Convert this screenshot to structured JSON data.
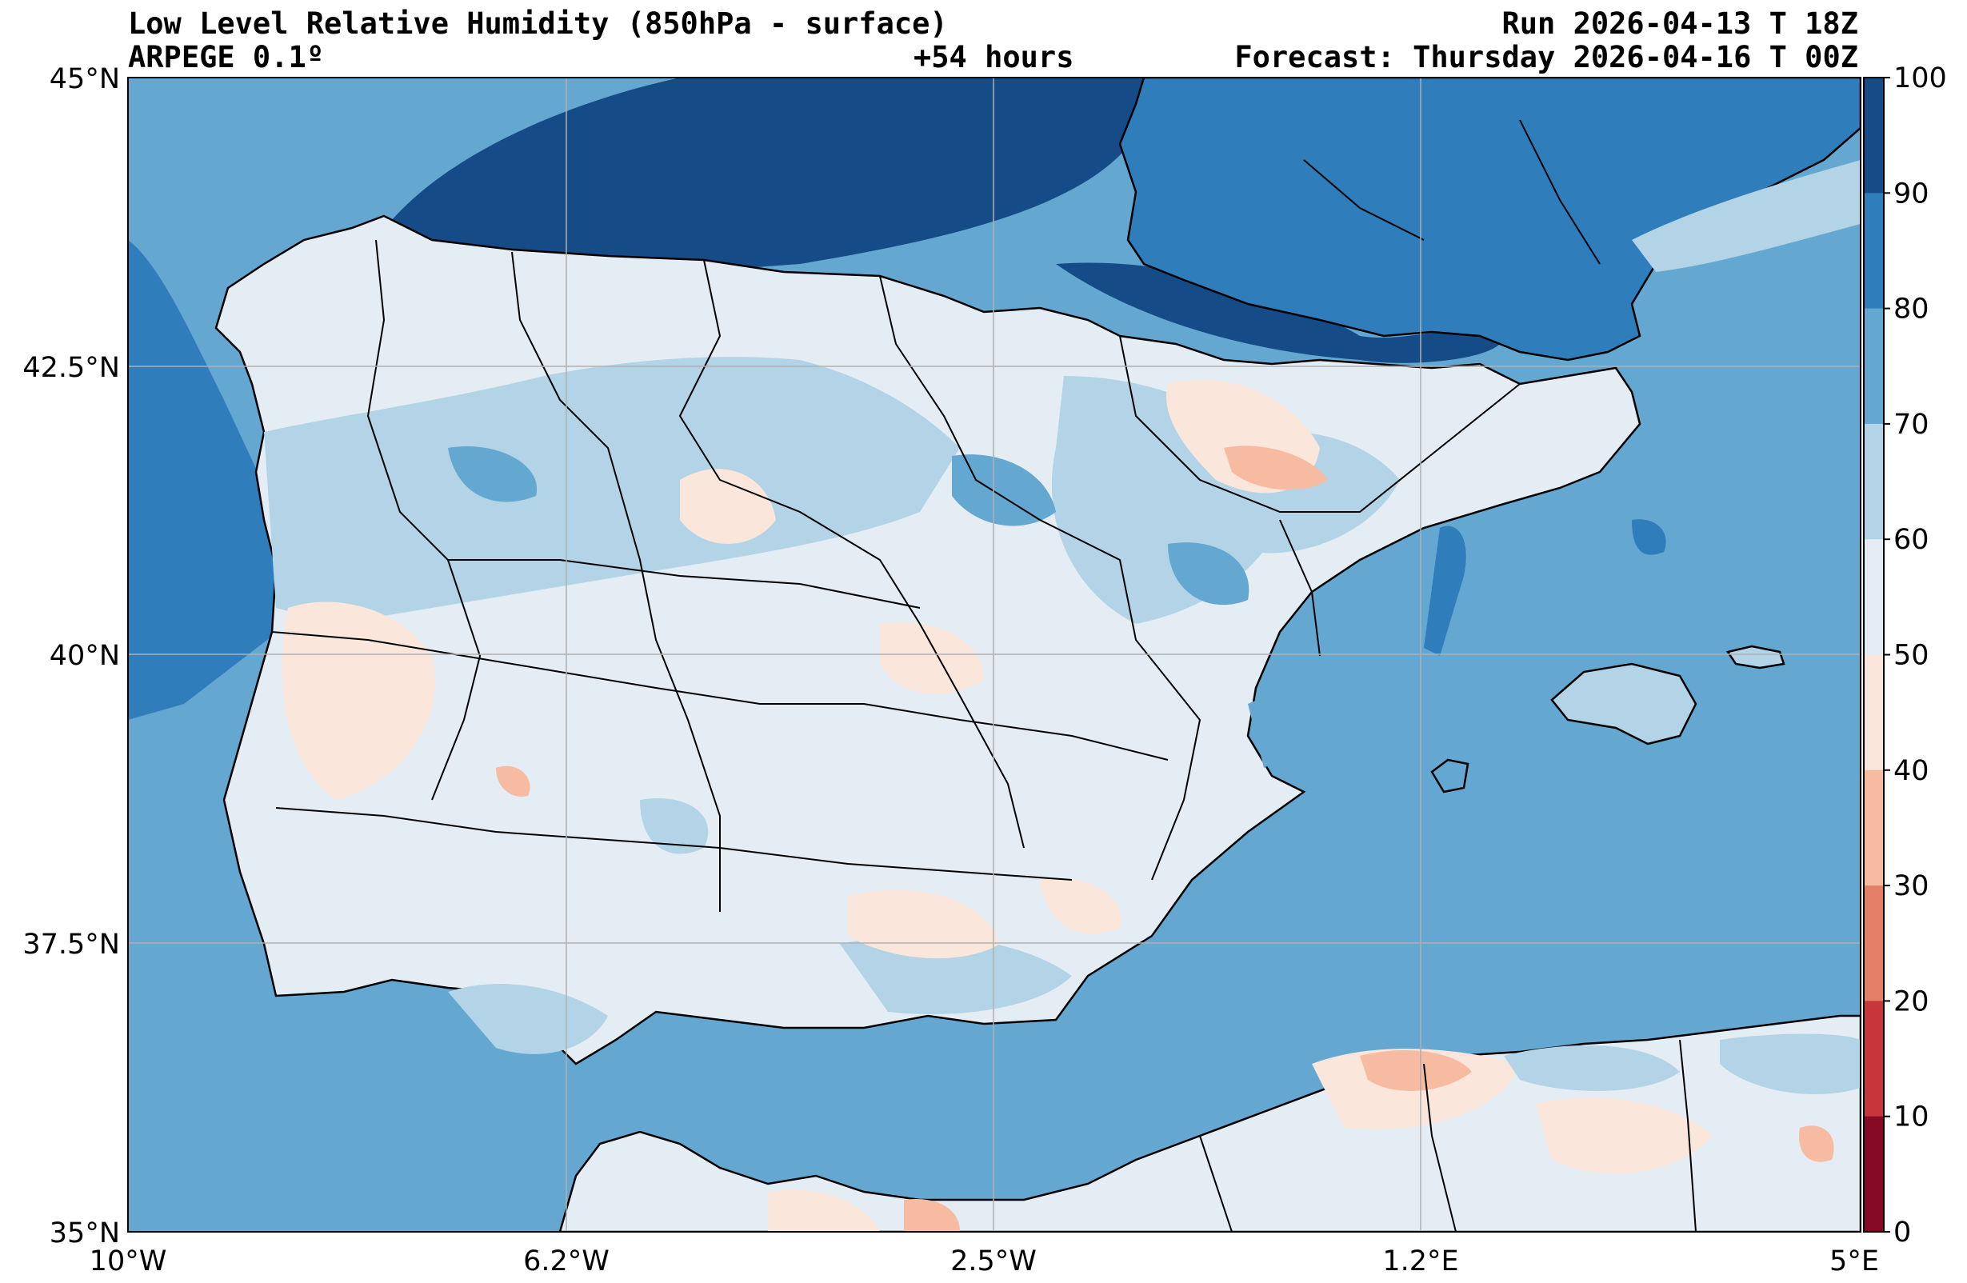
{
  "header": {
    "title": "Low Level Relative Humidity (850hPa - surface)",
    "model": "ARPEGE 0.1º",
    "lead_time": "+54 hours",
    "run": "Run 2026-04-13 T 18Z",
    "forecast": "Forecast: Thursday 2026-04-16 T 00Z"
  },
  "axes": {
    "lat_ticks": [
      "45°N",
      "42.5°N",
      "40°N",
      "37.5°N",
      "35°N"
    ],
    "lon_ticks": [
      "10°W",
      "6.2°W",
      "2.5°W",
      "1.2°E",
      "5°E"
    ]
  },
  "colorbar": {
    "ticks": [
      "100",
      "90",
      "80",
      "70",
      "60",
      "50",
      "40",
      "30",
      "20",
      "10",
      "0"
    ],
    "colors": [
      "#154b86",
      "#2f7dbb",
      "#64a7d0",
      "#b3d4e7",
      "#e5edf4",
      "#fbe6dc",
      "#f6bba1",
      "#e48067",
      "#c6363a",
      "#870a24"
    ]
  },
  "map": {
    "extent": {
      "lon_min": -10,
      "lon_max": 5,
      "lat_min": 35,
      "lat_max": 45
    },
    "ocean_color": "#64a7d0",
    "land_color": "#e5edf4",
    "grid": true
  }
}
